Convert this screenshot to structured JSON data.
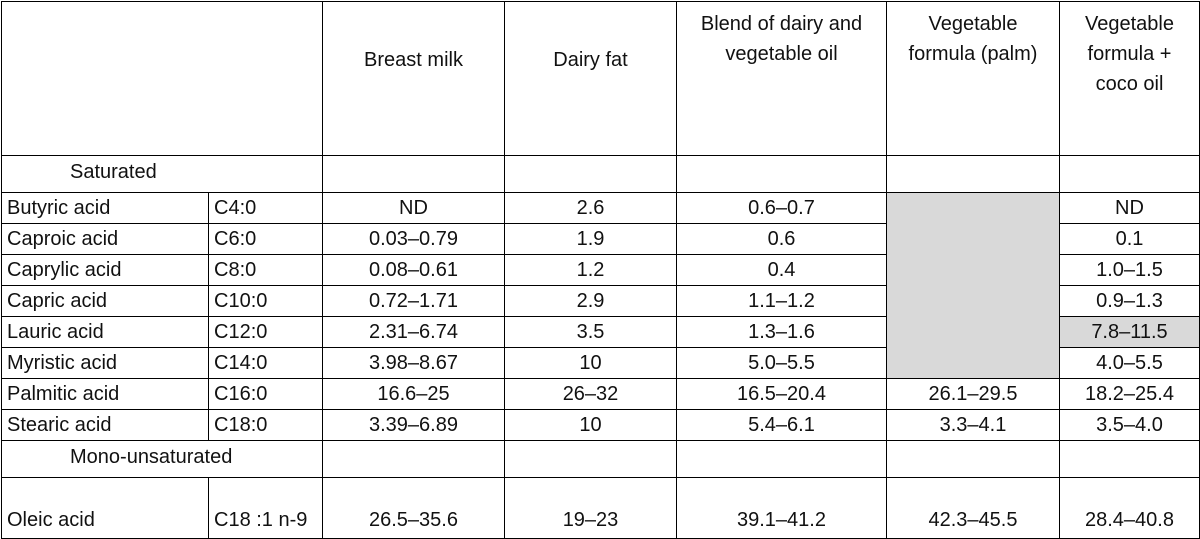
{
  "headers": {
    "breast_milk": "Breast milk",
    "dairy_fat": "Dairy fat",
    "blend": "Blend of dairy and vegetable oil",
    "veg_palm": "Vegetable formula (palm)",
    "veg_coco": "Vegetable formula + coco oil"
  },
  "groups": {
    "saturated": "Saturated",
    "mono": "Mono-unsaturated"
  },
  "rows": [
    {
      "name": "Butyric acid",
      "code": "C4:0",
      "breast": "ND",
      "dairy": "2.6",
      "blend": "0.6–0.7",
      "palm": "",
      "coco": "ND"
    },
    {
      "name": "Caproic acid",
      "code": "C6:0",
      "breast": "0.03–0.79",
      "dairy": "1.9",
      "blend": "0.6",
      "palm": "",
      "coco": "0.1"
    },
    {
      "name": "Caprylic acid",
      "code": "C8:0",
      "breast": "0.08–0.61",
      "dairy": "1.2",
      "blend": "0.4",
      "palm": "",
      "coco": "1.0–1.5"
    },
    {
      "name": "Capric acid",
      "code": "C10:0",
      "breast": "0.72–1.71",
      "dairy": "2.9",
      "blend": "1.1–1.2",
      "palm": "",
      "coco": "0.9–1.3"
    },
    {
      "name": "Lauric acid",
      "code": "C12:0",
      "breast": "2.31–6.74",
      "dairy": "3.5",
      "blend": "1.3–1.6",
      "palm": "",
      "coco": "7.8–11.5"
    },
    {
      "name": "Myristic acid",
      "code": "C14:0",
      "breast": "3.98–8.67",
      "dairy": "10",
      "blend": "5.0–5.5",
      "palm": "",
      "coco": "4.0–5.5"
    },
    {
      "name": "Palmitic acid",
      "code": "C16:0",
      "breast": "16.6–25",
      "dairy": "26–32",
      "blend": "16.5–20.4",
      "palm": "26.1–29.5",
      "coco": "18.2–25.4"
    },
    {
      "name": "Stearic acid",
      "code": "C18:0",
      "breast": "3.39–6.89",
      "dairy": "10",
      "blend": "5.4–6.1",
      "palm": "3.3–4.1",
      "coco": "3.5–4.0"
    }
  ],
  "oleic": {
    "name": "Oleic acid",
    "code": "C18 :1 n-9",
    "breast": "26.5–35.6",
    "dairy": "19–23",
    "blend": "39.1–41.2",
    "palm": "42.3–45.5",
    "coco": "28.4–40.8"
  },
  "colors": {
    "shade": "#d9d9d9",
    "border": "#000000"
  }
}
